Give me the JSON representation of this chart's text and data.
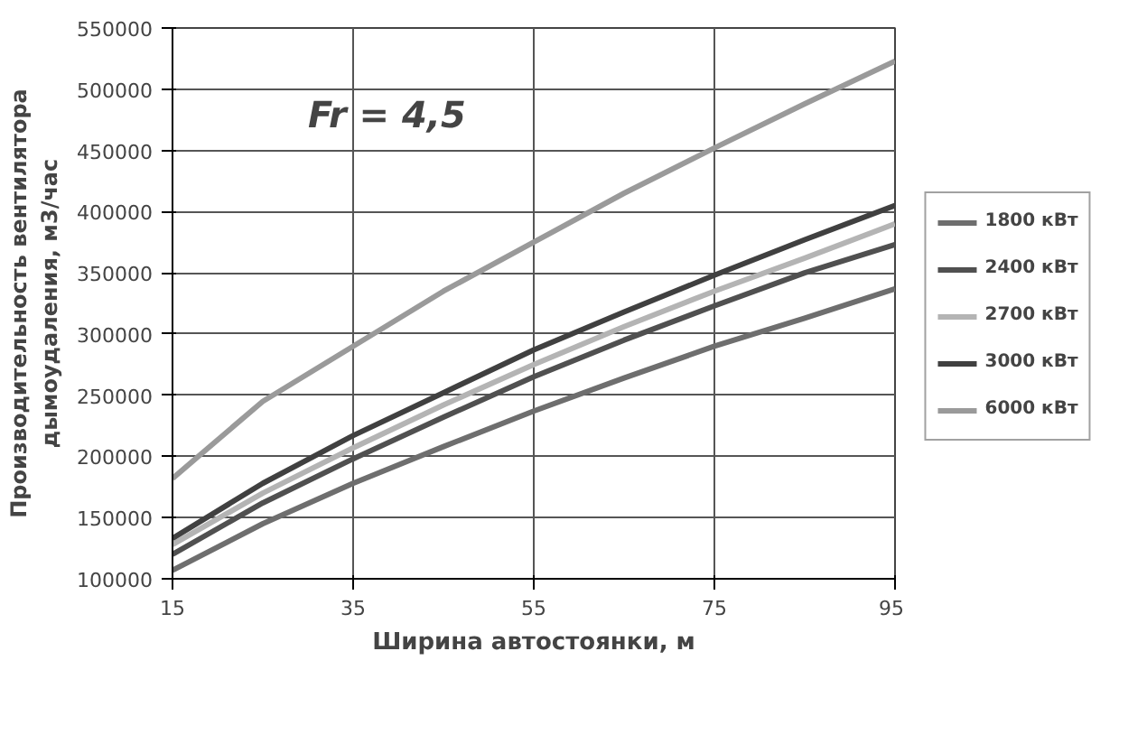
{
  "chart_data": {
    "type": "line",
    "xlabel": "Ширина автостоянки, м",
    "ylabel": "Производительность вентилятора дымоудаления, м3/час",
    "annotations": [
      "Fr = 4,5"
    ],
    "x": [
      15,
      25,
      35,
      45,
      55,
      65,
      75,
      85,
      95
    ],
    "series": [
      {
        "name": "1800 кВт",
        "color": "#6e6e6e",
        "values": [
          107000,
          145000,
          178000,
          208000,
          237000,
          264000,
          290000,
          313000,
          337000
        ]
      },
      {
        "name": "2400 кВт",
        "color": "#505050",
        "values": [
          120000,
          162000,
          198000,
          232000,
          265000,
          295000,
          323000,
          350000,
          373000
        ]
      },
      {
        "name": "2700 кВт",
        "color": "#b4b4b4",
        "values": [
          128000,
          170000,
          207000,
          242000,
          275000,
          306000,
          335000,
          362000,
          390000
        ]
      },
      {
        "name": "3000 кВт",
        "color": "#404040",
        "values": [
          133000,
          178000,
          217000,
          252000,
          287000,
          318000,
          348000,
          377000,
          405000
        ]
      },
      {
        "name": "6000 кВт",
        "color": "#9a9a9a",
        "values": [
          182000,
          245000,
          290000,
          335000,
          375000,
          415000,
          452000,
          488000,
          523000
        ]
      }
    ],
    "xlim": [
      15,
      95
    ],
    "xticks": [
      15,
      35,
      55,
      75,
      95
    ],
    "ylim": [
      100000,
      550000
    ],
    "yticks": [
      100000,
      150000,
      200000,
      250000,
      300000,
      350000,
      400000,
      450000,
      500000,
      550000
    ],
    "grid": true,
    "legend": "right",
    "marker": "none",
    "line_style": "solid"
  }
}
